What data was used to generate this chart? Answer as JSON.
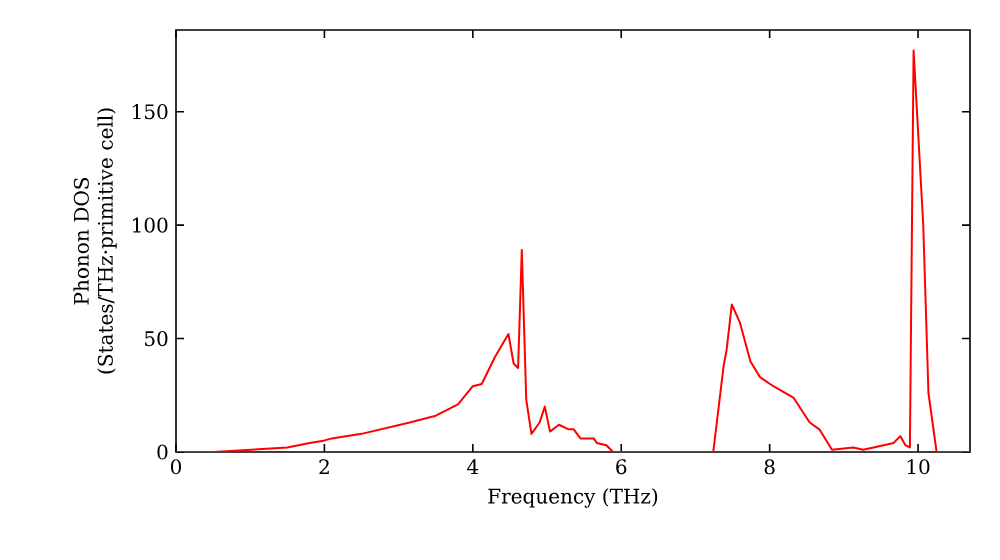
{
  "chart_data": {
    "type": "line",
    "xlabel": "Frequency (THz)",
    "ylabel": "Phonon DOS (States/THz·primitive cell)",
    "x": [
      0,
      0.5,
      1.0,
      1.5,
      1.8,
      1.99,
      2.1,
      2.5,
      3.15,
      3.5,
      3.8,
      4.0,
      4.12,
      4.3,
      4.48,
      4.55,
      4.61,
      4.66,
      4.72,
      4.79,
      4.9,
      4.97,
      5.04,
      5.16,
      5.29,
      5.36,
      5.45,
      5.63,
      5.67,
      5.8,
      5.89,
      7.24,
      7.38,
      7.42,
      7.49,
      7.6,
      7.74,
      7.87,
      8.05,
      8.32,
      8.54,
      8.67,
      8.84,
      9.13,
      9.26,
      9.4,
      9.67,
      9.76,
      9.83,
      9.89,
      9.94,
      10.07,
      10.14,
      10.25,
      10.7
    ],
    "series": [
      {
        "color": "#ff0000",
        "values": [
          0,
          0,
          1,
          2,
          4,
          5,
          6,
          8,
          13,
          16,
          21,
          29,
          30,
          42,
          52,
          39,
          37,
          89,
          23,
          8,
          13,
          20,
          9,
          12,
          10,
          10,
          6,
          6,
          4,
          3,
          0,
          0,
          38,
          45,
          65,
          57,
          40,
          33,
          29,
          24,
          13,
          10,
          1,
          2,
          1,
          2,
          4,
          7,
          3,
          2,
          177,
          100,
          26,
          0,
          0
        ]
      }
    ],
    "xlim": [
      0,
      10.7
    ],
    "ylim": [
      0,
      186
    ],
    "xticks": [
      0,
      2,
      4,
      6,
      8,
      10
    ],
    "yticks": [
      0,
      50,
      100,
      150
    ],
    "grid": false,
    "line_style": "solid",
    "marker": "none"
  }
}
